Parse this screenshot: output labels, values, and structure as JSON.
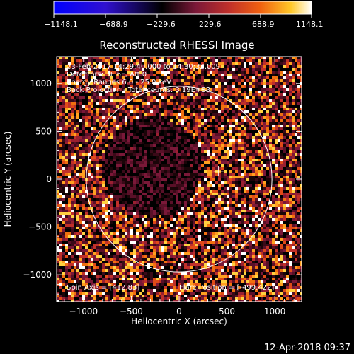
{
  "chart_data": {
    "type": "heatmap",
    "title": "Reconstructed RHESSI Image",
    "xlabel": "Heliocentric X (arcsec)",
    "ylabel": "Heliocentric Y (arcsec)",
    "xlim": [
      -1280,
      1280
    ],
    "ylim": [
      -1280,
      1280
    ],
    "x_ticks": [
      {
        "value": -1000,
        "label": "−1000"
      },
      {
        "value": -500,
        "label": "−500"
      },
      {
        "value": 0,
        "label": "0"
      },
      {
        "value": 500,
        "label": "500"
      },
      {
        "value": 1000,
        "label": "1000"
      }
    ],
    "y_ticks": [
      {
        "value": 1000,
        "label": "1000"
      },
      {
        "value": 500,
        "label": "500"
      },
      {
        "value": 0,
        "label": "0"
      },
      {
        "value": -500,
        "label": "−500"
      },
      {
        "value": -1000,
        "label": "−1000"
      }
    ],
    "colorbar": {
      "min": -1148.1,
      "max": 1148.1,
      "ticks": [
        "−1148.1",
        "−688.9",
        "−229.6",
        "229.6",
        "688.9",
        "1148.1"
      ],
      "palette": [
        "#0000ff",
        "#3010d0",
        "#000000",
        "#7a1838",
        "#c0302a",
        "#f06010",
        "#ffc828",
        "#ffffff"
      ]
    },
    "annotations": [
      "23-Feb-2017 14:29:40.000 to 14:30:32.009",
      "Detectors: 3F 6F, Att 0",
      "Energy Ranges 6.0 - 25.0 keV",
      "Back Projection - Total counts: 3.19E+03"
    ],
    "spin_axis_label": "Spin Axis = [412,83]",
    "spin_axis": [
      412,
      83
    ],
    "flare_position_label": "Flare Position = [-499,422]",
    "solar_disk_radius_arcsec": 970,
    "timestamp": "12-Apr-2018 09:37"
  }
}
